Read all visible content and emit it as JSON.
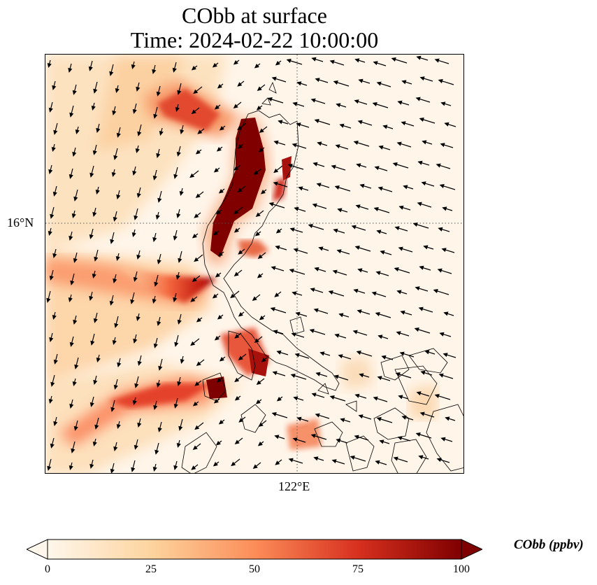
{
  "title_line1": "CObb at surface",
  "title_line2": "Time: 2024-02-22 10:00:00",
  "lat_tick": "16°N",
  "lon_tick": "122°E",
  "colorbar": {
    "label": "CObb (ppbv)",
    "ticks": [
      "0",
      "25",
      "50",
      "75",
      "100"
    ],
    "min": 0,
    "max": 100,
    "colormap": "OrRd",
    "extend": "both",
    "colors": [
      "#fff7ec",
      "#fdd49e",
      "#fc8d59",
      "#d7301f",
      "#7f0000"
    ]
  },
  "map": {
    "background": "#fff5e9",
    "gridline_style": "dotted",
    "features": [
      "coastlines",
      "wind-vectors",
      "CObb-concentration-field"
    ]
  }
}
